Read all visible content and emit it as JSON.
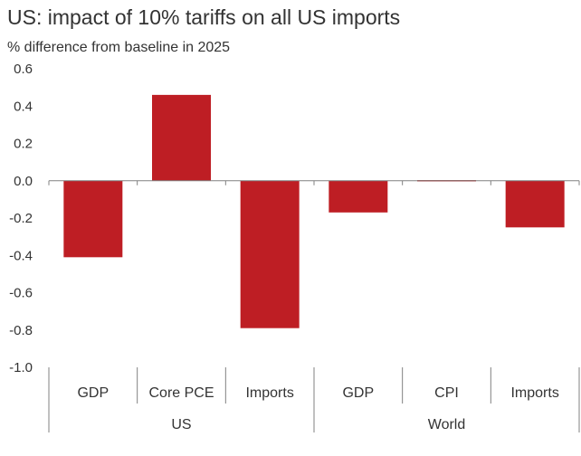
{
  "title": "US: impact of 10% tariffs on all US imports",
  "subtitle": "% difference from baseline in 2025",
  "colors": {
    "bar": "#BE1E24",
    "axis": "#808080",
    "text": "#333333"
  },
  "chart_data": {
    "type": "bar",
    "title": "US: impact of 10% tariffs on all US imports",
    "ylabel": "% difference from baseline in 2025",
    "xlabel": "",
    "ylim": [
      -1.0,
      0.6
    ],
    "yticks": [
      "0.6",
      "0.4",
      "0.2",
      "0.0",
      "-0.2",
      "-0.4",
      "-0.6",
      "-0.8",
      "-1.0"
    ],
    "ytick_values": [
      0.6,
      0.4,
      0.2,
      0.0,
      -0.2,
      -0.4,
      -0.6,
      -0.8,
      -1.0
    ],
    "categories": [
      "GDP",
      "Core PCE",
      "Imports",
      "GDP",
      "CPI",
      "Imports"
    ],
    "groups": [
      {
        "name": "US",
        "count": 3
      },
      {
        "name": "World",
        "count": 3
      }
    ],
    "values": [
      -0.41,
      0.46,
      -0.79,
      -0.17,
      0.005,
      -0.25
    ],
    "grid": false,
    "legend": "none"
  }
}
